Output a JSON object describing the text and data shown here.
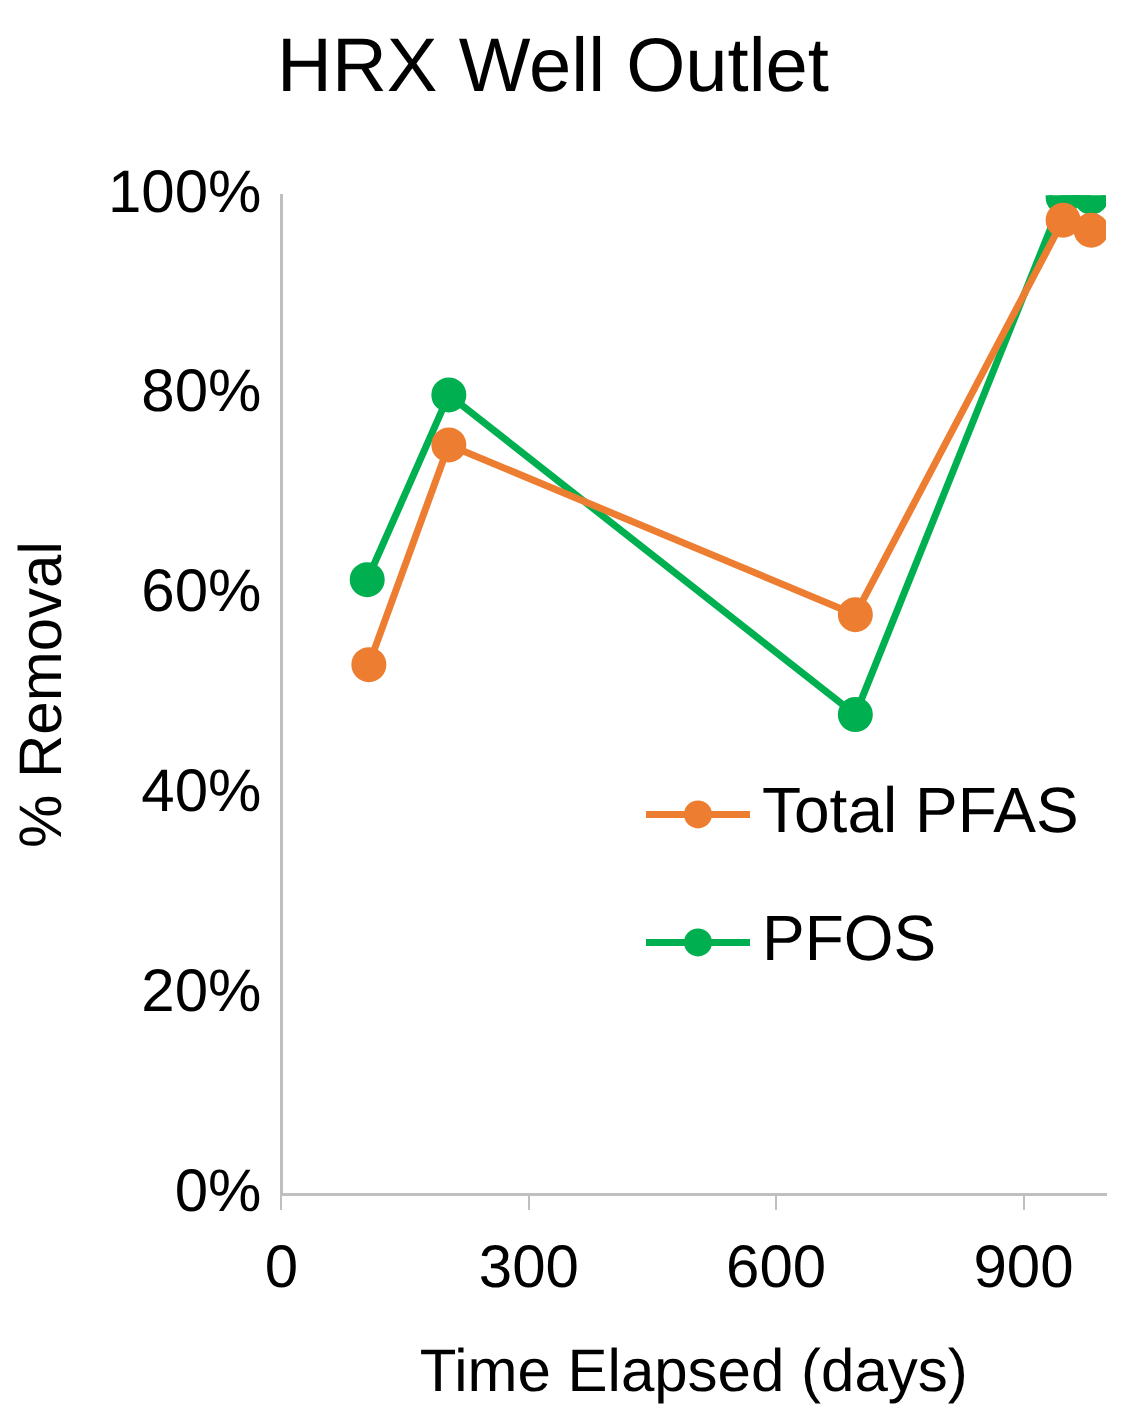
{
  "chart_data": {
    "type": "line",
    "title": "HRX Well Outlet",
    "xlabel": "Time Elapsed (days)",
    "ylabel": "% Removal",
    "xlim": [
      0,
      1000
    ],
    "xticks": [
      0,
      300,
      600,
      900
    ],
    "ylim": [
      0,
      100
    ],
    "yticks": [
      {
        "value": 0,
        "label": "0%"
      },
      {
        "value": 20,
        "label": "20%"
      },
      {
        "value": 40,
        "label": "40%"
      },
      {
        "value": 60,
        "label": "60%"
      },
      {
        "value": 80,
        "label": "80%"
      },
      {
        "value": 100,
        "label": "100%"
      }
    ],
    "grid": false,
    "legend": "right",
    "marker": "circle",
    "line_style": "solid",
    "series": [
      {
        "name": "Total PFAS",
        "color": "#ed7d31",
        "x": [
          106,
          203,
          696,
          948,
          982
        ],
        "values": [
          53,
          75,
          58,
          97.5,
          96.5
        ]
      },
      {
        "name": "PFOS",
        "color": "#00b050",
        "x": [
          104,
          203,
          696,
          948,
          982
        ],
        "values": [
          61.5,
          80,
          48,
          99.8,
          99.8
        ]
      }
    ]
  }
}
